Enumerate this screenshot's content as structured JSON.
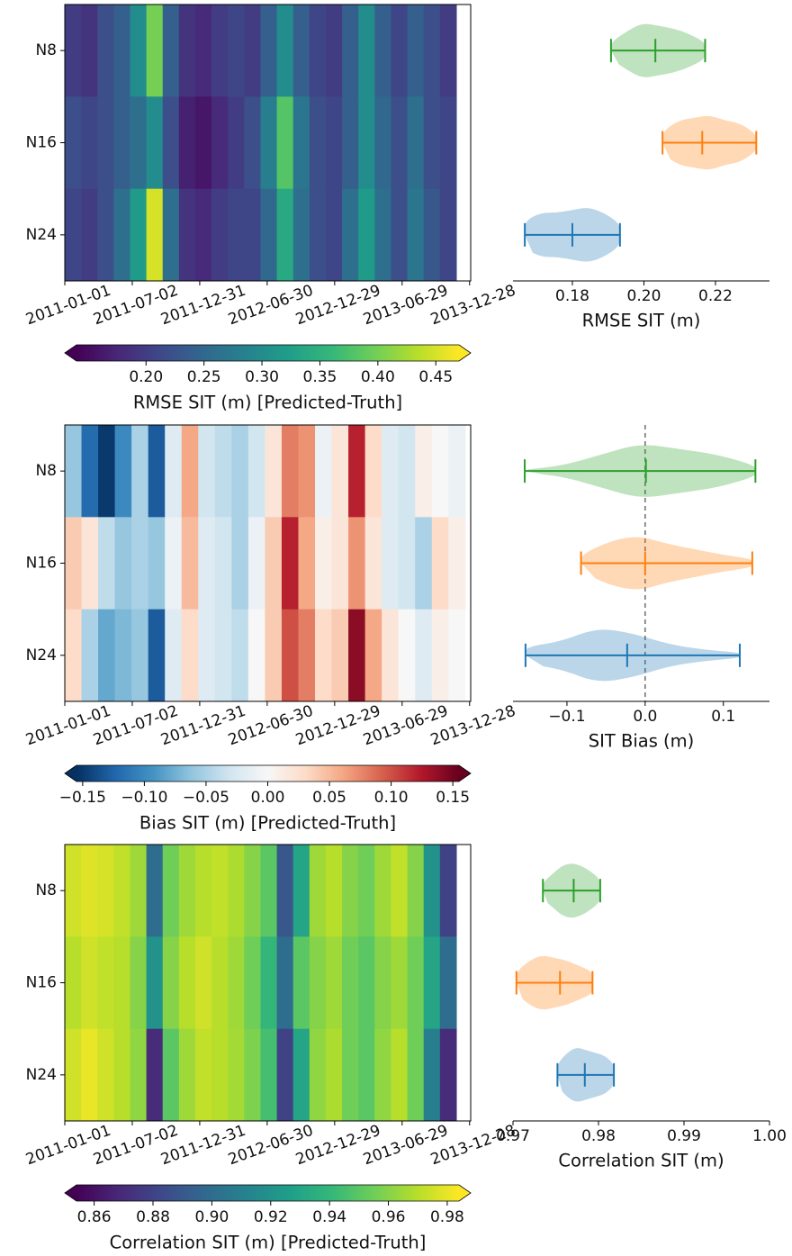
{
  "chart_data": [
    {
      "type": "heatmap",
      "rows": [
        "N8",
        "N16",
        "N24"
      ],
      "x": [
        0,
        44,
        88,
        132,
        176,
        220,
        264,
        308,
        352,
        396,
        440,
        484,
        528,
        572,
        616,
        660,
        704,
        748,
        792,
        836,
        880,
        924,
        968,
        1012
      ],
      "xlim": [
        0,
        1095
      ],
      "xticks": [
        {
          "value": 0,
          "label": "2011-01-01"
        },
        {
          "value": 182,
          "label": "2011-07-02"
        },
        {
          "value": 364,
          "label": "2011-12-31"
        },
        {
          "value": 546,
          "label": "2012-06-30"
        },
        {
          "value": 728,
          "label": "2012-12-29"
        },
        {
          "value": 910,
          "label": "2013-06-29"
        },
        {
          "value": 1092,
          "label": "2013-12-28"
        }
      ],
      "values": [
        [
          0.2,
          0.19,
          0.22,
          0.24,
          0.3,
          0.4,
          0.24,
          0.19,
          0.18,
          0.2,
          0.21,
          0.2,
          0.24,
          0.3,
          0.24,
          0.21,
          0.2,
          0.24,
          0.3,
          0.24,
          0.21,
          0.24,
          0.22,
          0.2
        ],
        [
          0.22,
          0.21,
          0.22,
          0.24,
          0.26,
          0.3,
          0.22,
          0.17,
          0.16,
          0.18,
          0.2,
          0.22,
          0.28,
          0.38,
          0.27,
          0.22,
          0.21,
          0.24,
          0.3,
          0.25,
          0.22,
          0.26,
          0.22,
          0.21
        ],
        [
          0.21,
          0.2,
          0.22,
          0.26,
          0.32,
          0.45,
          0.26,
          0.19,
          0.18,
          0.2,
          0.21,
          0.21,
          0.25,
          0.34,
          0.26,
          0.22,
          0.21,
          0.26,
          0.32,
          0.26,
          0.22,
          0.27,
          0.23,
          0.21
        ]
      ],
      "colorbar": {
        "label": "RMSE SIT (m) [Predicted-Truth]",
        "clim": [
          0.14,
          0.47
        ],
        "ticks": [
          {
            "value": 0.2,
            "label": "0.20"
          },
          0.25,
          {
            "value": 0.3,
            "label": "0.30"
          },
          0.35,
          {
            "value": 0.4,
            "label": "0.40"
          },
          0.45
        ],
        "colors": [
          "#440154",
          "#482878",
          "#3e4989",
          "#31688e",
          "#26828e",
          "#1f9e89",
          "#35b779",
          "#6ece58",
          "#b5de2b",
          "#fde725"
        ]
      }
    },
    {
      "type": "violin",
      "xlabel": "RMSE SIT (m)",
      "xlim": [
        0.1634,
        0.2351
      ],
      "xticks": [
        0.18,
        {
          "value": 0.2,
          "label": "0.20"
        },
        0.22
      ],
      "series": [
        {
          "color": "#2ca02c",
          "min": 0.1908,
          "mid": 0.2032,
          "max": 0.2171,
          "density": [
            0.3,
            0.7,
            1.0,
            0.9,
            0.8,
            0.6,
            0.3
          ]
        },
        {
          "color": "#ff7f0e",
          "min": 0.2052,
          "mid": 0.2163,
          "max": 0.2314,
          "density": [
            0.4,
            0.8,
            0.9,
            1.0,
            0.8,
            0.7,
            0.3
          ]
        },
        {
          "color": "#1f77b4",
          "min": 0.1667,
          "mid": 0.18,
          "max": 0.1933,
          "density": [
            0.5,
            0.8,
            0.8,
            0.9,
            1.0,
            0.8,
            0.4
          ]
        }
      ]
    },
    {
      "type": "heatmap",
      "rows": [
        "N8",
        "N16",
        "N24"
      ],
      "x": [
        0,
        45,
        90,
        135,
        180,
        225,
        270,
        315,
        360,
        405,
        450,
        495,
        540,
        585,
        630,
        675,
        720,
        765,
        810,
        855,
        900,
        945,
        990,
        1035
      ],
      "xlim": [
        0,
        1095
      ],
      "xticks": [
        {
          "value": 0,
          "label": "2011-01-01"
        },
        {
          "value": 182,
          "label": "2011-07-02"
        },
        {
          "value": 364,
          "label": "2011-12-31"
        },
        {
          "value": 546,
          "label": "2012-06-30"
        },
        {
          "value": 728,
          "label": "2012-12-29"
        },
        {
          "value": 910,
          "label": "2013-06-29"
        },
        {
          "value": 1092,
          "label": "2013-12-28"
        }
      ],
      "values": [
        [
          -0.06,
          -0.12,
          -0.15,
          -0.1,
          -0.05,
          -0.13,
          -0.02,
          0.06,
          -0.03,
          -0.04,
          -0.05,
          -0.03,
          0.02,
          0.08,
          0.07,
          -0.01,
          0.02,
          0.12,
          0.03,
          -0.02,
          -0.03,
          0.01,
          0.0,
          -0.01
        ],
        [
          0.04,
          0.02,
          -0.04,
          -0.06,
          -0.05,
          -0.06,
          -0.01,
          0.05,
          -0.02,
          -0.03,
          -0.05,
          -0.01,
          0.04,
          0.12,
          0.06,
          0.01,
          0.02,
          0.07,
          0.02,
          -0.02,
          -0.03,
          -0.05,
          0.03,
          0.01
        ],
        [
          0.03,
          -0.05,
          -0.08,
          -0.07,
          -0.06,
          -0.13,
          -0.02,
          0.03,
          -0.02,
          -0.03,
          -0.04,
          0.0,
          0.04,
          0.1,
          0.08,
          0.03,
          0.04,
          0.14,
          0.06,
          0.02,
          0.0,
          -0.02,
          0.01,
          0.0
        ]
      ],
      "colorbar": {
        "label": "Bias SIT (m) [Predicted-Truth]",
        "clim": [
          -0.155,
          0.155
        ],
        "ticks": [
          {
            "value": -0.15,
            "label": "−0.15"
          },
          {
            "value": -0.1,
            "label": "−0.10"
          },
          {
            "value": -0.05,
            "label": "−0.05"
          },
          {
            "value": 0,
            "label": "0.00"
          },
          0.05,
          {
            "value": 0.1,
            "label": "0.10"
          },
          0.15
        ],
        "colors": [
          "#053061",
          "#2166ac",
          "#4393c3",
          "#92c5de",
          "#d1e5f0",
          "#f7f7f7",
          "#fddbc7",
          "#f4a582",
          "#d6604d",
          "#b2182b",
          "#67001f"
        ]
      }
    },
    {
      "type": "violin",
      "xlabel": "SIT Bias (m)",
      "xlim": [
        -0.169,
        0.159
      ],
      "reference_line": 0,
      "xticks": [
        {
          "value": -0.1,
          "label": "−0.1"
        },
        {
          "value": 0,
          "label": "0.0"
        },
        0.1
      ],
      "series": [
        {
          "color": "#2ca02c",
          "min": -0.154,
          "mid": 0.001,
          "max": 0.141,
          "density": [
            0.05,
            0.2,
            0.6,
            1.0,
            0.8,
            0.6,
            0.2
          ]
        },
        {
          "color": "#ff7f0e",
          "min": -0.082,
          "mid": 0,
          "max": 0.137,
          "density": [
            0.3,
            0.8,
            1.0,
            0.7,
            0.5,
            0.3,
            0.15
          ]
        },
        {
          "color": "#1f77b4",
          "min": -0.153,
          "mid": -0.023,
          "max": 0.121,
          "density": [
            0.3,
            0.5,
            1.0,
            0.8,
            0.4,
            0.2,
            0.1
          ]
        }
      ]
    },
    {
      "type": "heatmap",
      "rows": [
        "N8",
        "N16",
        "N24"
      ],
      "x": [
        0,
        44,
        88,
        132,
        176,
        220,
        264,
        308,
        352,
        396,
        440,
        484,
        528,
        572,
        616,
        660,
        704,
        748,
        792,
        836,
        880,
        924,
        968,
        1012
      ],
      "xlim": [
        0,
        1095
      ],
      "xticks": [
        {
          "value": 0,
          "label": "2011-01-01"
        },
        {
          "value": 182,
          "label": "2011-07-02"
        },
        {
          "value": 364,
          "label": "2011-12-31"
        },
        {
          "value": 546,
          "label": "2012-06-30"
        },
        {
          "value": 728,
          "label": "2012-12-29"
        },
        {
          "value": 910,
          "label": "2013-06-29"
        },
        {
          "value": 1092,
          "label": "2013-12-28"
        }
      ],
      "values": [
        [
          0.975,
          0.978,
          0.976,
          0.972,
          0.965,
          0.9,
          0.955,
          0.965,
          0.97,
          0.972,
          0.968,
          0.96,
          0.95,
          0.89,
          0.93,
          0.965,
          0.97,
          0.96,
          0.955,
          0.965,
          0.972,
          0.96,
          0.92,
          0.88
        ],
        [
          0.97,
          0.975,
          0.972,
          0.97,
          0.96,
          0.92,
          0.96,
          0.97,
          0.975,
          0.97,
          0.965,
          0.955,
          0.94,
          0.9,
          0.95,
          0.96,
          0.965,
          0.955,
          0.95,
          0.96,
          0.965,
          0.955,
          0.93,
          0.9
        ],
        [
          0.975,
          0.98,
          0.975,
          0.97,
          0.962,
          0.87,
          0.95,
          0.965,
          0.972,
          0.97,
          0.966,
          0.958,
          0.945,
          0.88,
          0.93,
          0.962,
          0.968,
          0.955,
          0.95,
          0.962,
          0.97,
          0.955,
          0.91,
          0.87
        ]
      ],
      "colorbar": {
        "label": "Correlation SIT (m) [Predicted-Truth]",
        "clim": [
          0.854,
          0.984
        ],
        "ticks": [
          0.86,
          0.88,
          {
            "value": 0.9,
            "label": "0.90"
          },
          0.92,
          0.94,
          0.96,
          0.98
        ],
        "colors": [
          "#440154",
          "#482878",
          "#3e4989",
          "#31688e",
          "#26828e",
          "#1f9e89",
          "#35b779",
          "#6ece58",
          "#b5de2b",
          "#fde725"
        ]
      }
    },
    {
      "type": "violin",
      "xlabel": "Correlation SIT (m)",
      "xlim": [
        0.97,
        1.0
      ],
      "xticks": [
        0.97,
        0.98,
        0.99,
        {
          "value": 1.0,
          "label": "1.00"
        }
      ],
      "series": [
        {
          "color": "#2ca02c",
          "min": 0.9735,
          "mid": 0.9771,
          "max": 0.9802,
          "density": [
            0.3,
            0.6,
            0.9,
            1.0,
            0.9,
            0.7,
            0.4
          ]
        },
        {
          "color": "#ff7f0e",
          "min": 0.9704,
          "mid": 0.9755,
          "max": 0.9793,
          "density": [
            0.4,
            0.8,
            1.0,
            0.9,
            0.8,
            0.6,
            0.4
          ]
        },
        {
          "color": "#1f77b4",
          "min": 0.9752,
          "mid": 0.9784,
          "max": 0.9818,
          "density": [
            0.4,
            0.8,
            1.0,
            0.9,
            0.8,
            0.7,
            0.4
          ]
        }
      ]
    }
  ]
}
